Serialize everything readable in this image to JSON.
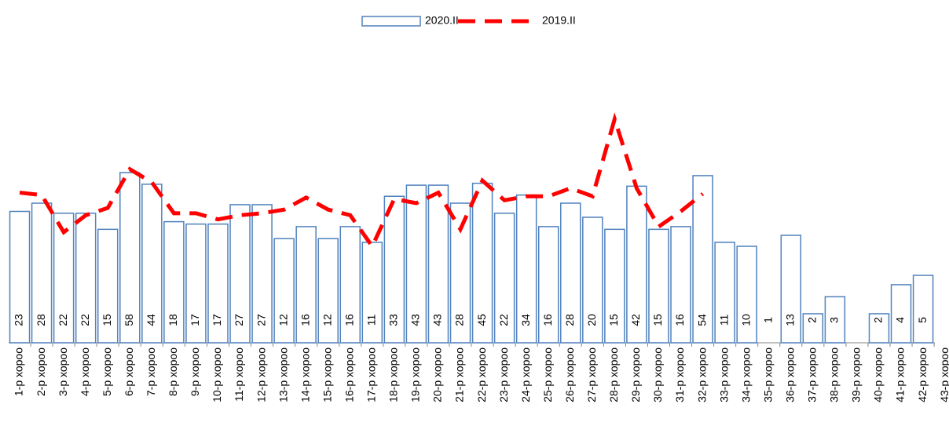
{
  "chart_data": {
    "type": "bar",
    "categories": [
      "1-р хороо",
      "2-р хороо",
      "3-р хороо",
      "4-р хороо",
      "5-р хороо",
      "6-р хороо",
      "7-р хороо",
      "8-р хороо",
      "9-р хороо",
      "10-р хороо",
      "11-р хороо",
      "12-р хороо",
      "13-р хороо",
      "14-р хороо",
      "15-р хороо",
      "16-р хороо",
      "17-р хороо",
      "18-р хороо",
      "19-р хороо",
      "20-р хороо",
      "21-р хороо",
      "22-р хороо",
      "23-р хороо",
      "24-р хороо",
      "25-р хороо",
      "26-р хороо",
      "27-р хороо",
      "28-р хороо",
      "29-р хороо",
      "30-р хороо",
      "31-р хороо",
      "32-р хороо",
      "33-р хороо",
      "34-р хороо",
      "35-р хороо",
      "36-р хороо",
      "37-р хороо",
      "38-р хороо",
      "39-р хороо",
      "40-р хороо",
      "41-р хороо",
      "42-р хороо",
      "43-р хороо"
    ],
    "series": [
      {
        "name": "2020.II",
        "color": "#4f81bd",
        "values": [
          23,
          28,
          22,
          22,
          15,
          58,
          44,
          18,
          17,
          17,
          27,
          27,
          12,
          16,
          12,
          16,
          11,
          33,
          43,
          43,
          28,
          45,
          22,
          34,
          16,
          28,
          20,
          15,
          42,
          15,
          16,
          54,
          11,
          10,
          1,
          13,
          2,
          3,
          null,
          2,
          4,
          5,
          null
        ]
      },
      {
        "name": "2019.II",
        "color": "#ff0000",
        "values": [
          36,
          34,
          14,
          21,
          25,
          63,
          46,
          22,
          22,
          19,
          21,
          22,
          24,
          32,
          24,
          21,
          10,
          31,
          28,
          36,
          15,
          48,
          30,
          33,
          33,
          40,
          33,
          208,
          40,
          16,
          23,
          35,
          null,
          null,
          null,
          null,
          null,
          null,
          null,
          null,
          null,
          null,
          null
        ]
      }
    ],
    "ylim": [
      1,
      1000
    ],
    "log_scale": true
  }
}
